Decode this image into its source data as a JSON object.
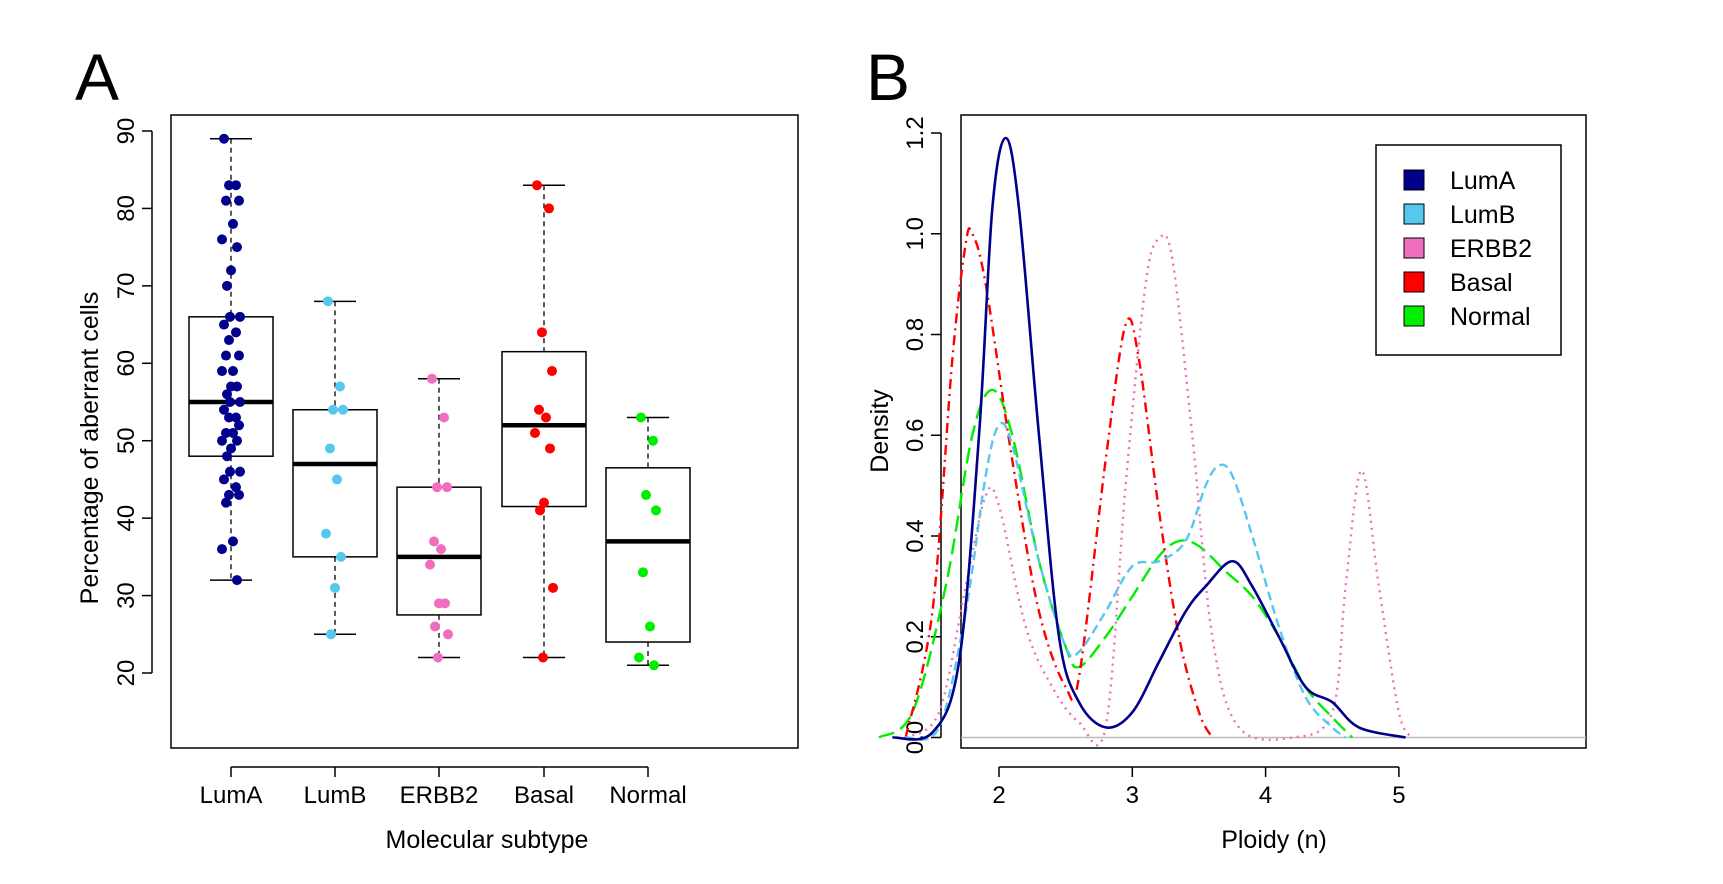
{
  "panels": {
    "a": {
      "letter": "A"
    },
    "b": {
      "letter": "B"
    }
  },
  "colors": {
    "LumA": "#00008B",
    "LumB": "#56C8EE",
    "ERBB2": "#F06EBE",
    "Basal": "#FF0000",
    "Normal": "#00EE00"
  },
  "chart_data": [
    {
      "type": "box",
      "title": "",
      "xlabel": "Molecular subtype",
      "ylabel": "Percentage of aberrant cells",
      "ylim": [
        20,
        90
      ],
      "yticks": [
        20,
        30,
        40,
        50,
        60,
        70,
        80,
        90
      ],
      "categories": [
        "LumA",
        "LumB",
        "ERBB2",
        "Basal",
        "Normal"
      ],
      "boxes": [
        {
          "name": "LumA",
          "whisker_low": 32,
          "q1": 48,
          "median": 55,
          "q3": 66,
          "whisker_high": 89,
          "points": [
            89,
            83,
            83,
            81,
            81,
            78,
            76,
            75,
            72,
            70,
            66,
            66,
            65,
            64,
            63,
            61,
            61,
            59,
            59,
            57,
            57,
            56,
            55,
            55,
            54,
            53,
            53,
            52,
            51,
            51,
            50,
            50,
            49,
            48,
            46,
            46,
            45,
            44,
            43,
            43,
            42,
            37,
            36,
            32
          ]
        },
        {
          "name": "LumB",
          "whisker_low": 25,
          "q1": 35,
          "median": 47,
          "q3": 54,
          "whisker_high": 68,
          "points": [
            68,
            57,
            54,
            54,
            49,
            45,
            38,
            35,
            31,
            25
          ]
        },
        {
          "name": "ERBB2",
          "whisker_low": 22,
          "q1": 27.5,
          "median": 35,
          "q3": 44,
          "whisker_high": 58,
          "points": [
            58,
            53,
            44,
            44,
            37,
            36,
            34,
            29,
            29,
            26,
            25,
            22
          ]
        },
        {
          "name": "Basal",
          "whisker_low": 22,
          "q1": 41.5,
          "median": 52,
          "q3": 61.5,
          "whisker_high": 83,
          "points": [
            83,
            80,
            64,
            59,
            54,
            53,
            51,
            49,
            42,
            41,
            31,
            22
          ]
        },
        {
          "name": "Normal",
          "whisker_low": 21,
          "q1": 24,
          "median": 37,
          "q3": 46.5,
          "whisker_high": 53,
          "points": [
            53,
            50,
            43,
            41,
            33,
            26,
            22,
            21
          ]
        }
      ]
    },
    {
      "type": "line",
      "title": "",
      "xlabel": "Ploidy (n)",
      "ylabel": "Density",
      "xlim": [
        1.0,
        5.2
      ],
      "ylim": [
        0.0,
        1.25
      ],
      "xticks": [
        2,
        3,
        4,
        5
      ],
      "yticks": [
        0.0,
        0.2,
        0.4,
        0.6,
        0.8,
        1.0,
        1.2
      ],
      "legend": {
        "position": "top-right",
        "entries": [
          "LumA",
          "LumB",
          "ERBB2",
          "Basal",
          "Normal"
        ]
      },
      "series": [
        {
          "name": "LumA",
          "style": "solid",
          "points": [
            [
              1.2,
              0.0
            ],
            [
              1.5,
              0.01
            ],
            [
              1.7,
              0.15
            ],
            [
              1.85,
              0.6
            ],
            [
              1.95,
              1.05
            ],
            [
              2.05,
              1.19
            ],
            [
              2.15,
              1.05
            ],
            [
              2.3,
              0.6
            ],
            [
              2.45,
              0.2
            ],
            [
              2.6,
              0.07
            ],
            [
              2.8,
              0.02
            ],
            [
              3.0,
              0.05
            ],
            [
              3.2,
              0.15
            ],
            [
              3.4,
              0.25
            ],
            [
              3.55,
              0.3
            ],
            [
              3.75,
              0.35
            ],
            [
              3.9,
              0.3
            ],
            [
              4.1,
              0.2
            ],
            [
              4.3,
              0.1
            ],
            [
              4.5,
              0.07
            ],
            [
              4.7,
              0.02
            ],
            [
              5.05,
              0.0
            ]
          ]
        },
        {
          "name": "LumB",
          "style": "dashed",
          "points": [
            [
              1.3,
              0.0
            ],
            [
              1.55,
              0.02
            ],
            [
              1.75,
              0.25
            ],
            [
              1.9,
              0.52
            ],
            [
              2.0,
              0.62
            ],
            [
              2.1,
              0.58
            ],
            [
              2.3,
              0.35
            ],
            [
              2.5,
              0.18
            ],
            [
              2.6,
              0.17
            ],
            [
              2.8,
              0.25
            ],
            [
              3.0,
              0.34
            ],
            [
              3.2,
              0.35
            ],
            [
              3.4,
              0.39
            ],
            [
              3.55,
              0.5
            ],
            [
              3.65,
              0.54
            ],
            [
              3.75,
              0.52
            ],
            [
              3.9,
              0.4
            ],
            [
              4.1,
              0.22
            ],
            [
              4.3,
              0.08
            ],
            [
              4.5,
              0.02
            ],
            [
              4.6,
              0.0
            ]
          ]
        },
        {
          "name": "ERBB2",
          "style": "dotted",
          "points": [
            [
              1.3,
              0.0
            ],
            [
              1.55,
              0.05
            ],
            [
              1.75,
              0.3
            ],
            [
              1.9,
              0.48
            ],
            [
              2.0,
              0.46
            ],
            [
              2.2,
              0.22
            ],
            [
              2.4,
              0.1
            ],
            [
              2.6,
              0.03
            ],
            [
              2.8,
              0.02
            ],
            [
              2.95,
              0.5
            ],
            [
              3.1,
              0.9
            ],
            [
              3.2,
              0.99
            ],
            [
              3.3,
              0.95
            ],
            [
              3.45,
              0.6
            ],
            [
              3.6,
              0.2
            ],
            [
              3.8,
              0.02
            ],
            [
              4.2,
              0.0
            ],
            [
              4.5,
              0.05
            ],
            [
              4.6,
              0.3
            ],
            [
              4.72,
              0.53
            ],
            [
              4.85,
              0.3
            ],
            [
              5.0,
              0.05
            ],
            [
              5.1,
              0.0
            ]
          ]
        },
        {
          "name": "Basal",
          "style": "dashdot",
          "points": [
            [
              1.3,
              0.0
            ],
            [
              1.5,
              0.25
            ],
            [
              1.65,
              0.75
            ],
            [
              1.75,
              0.98
            ],
            [
              1.8,
              1.0
            ],
            [
              1.9,
              0.9
            ],
            [
              2.1,
              0.55
            ],
            [
              2.3,
              0.25
            ],
            [
              2.5,
              0.1
            ],
            [
              2.6,
              0.12
            ],
            [
              2.8,
              0.55
            ],
            [
              2.95,
              0.82
            ],
            [
              3.05,
              0.75
            ],
            [
              3.2,
              0.45
            ],
            [
              3.35,
              0.2
            ],
            [
              3.5,
              0.05
            ],
            [
              3.6,
              0.0
            ]
          ]
        },
        {
          "name": "Normal",
          "style": "longdash",
          "points": [
            [
              1.1,
              0.0
            ],
            [
              1.35,
              0.05
            ],
            [
              1.6,
              0.3
            ],
            [
              1.8,
              0.6
            ],
            [
              1.95,
              0.69
            ],
            [
              2.1,
              0.6
            ],
            [
              2.3,
              0.35
            ],
            [
              2.5,
              0.18
            ],
            [
              2.6,
              0.14
            ],
            [
              2.8,
              0.2
            ],
            [
              3.0,
              0.28
            ],
            [
              3.2,
              0.36
            ],
            [
              3.35,
              0.39
            ],
            [
              3.5,
              0.38
            ],
            [
              3.7,
              0.33
            ],
            [
              3.9,
              0.28
            ],
            [
              4.1,
              0.2
            ],
            [
              4.3,
              0.1
            ],
            [
              4.5,
              0.04
            ],
            [
              4.65,
              0.0
            ]
          ]
        }
      ]
    }
  ]
}
